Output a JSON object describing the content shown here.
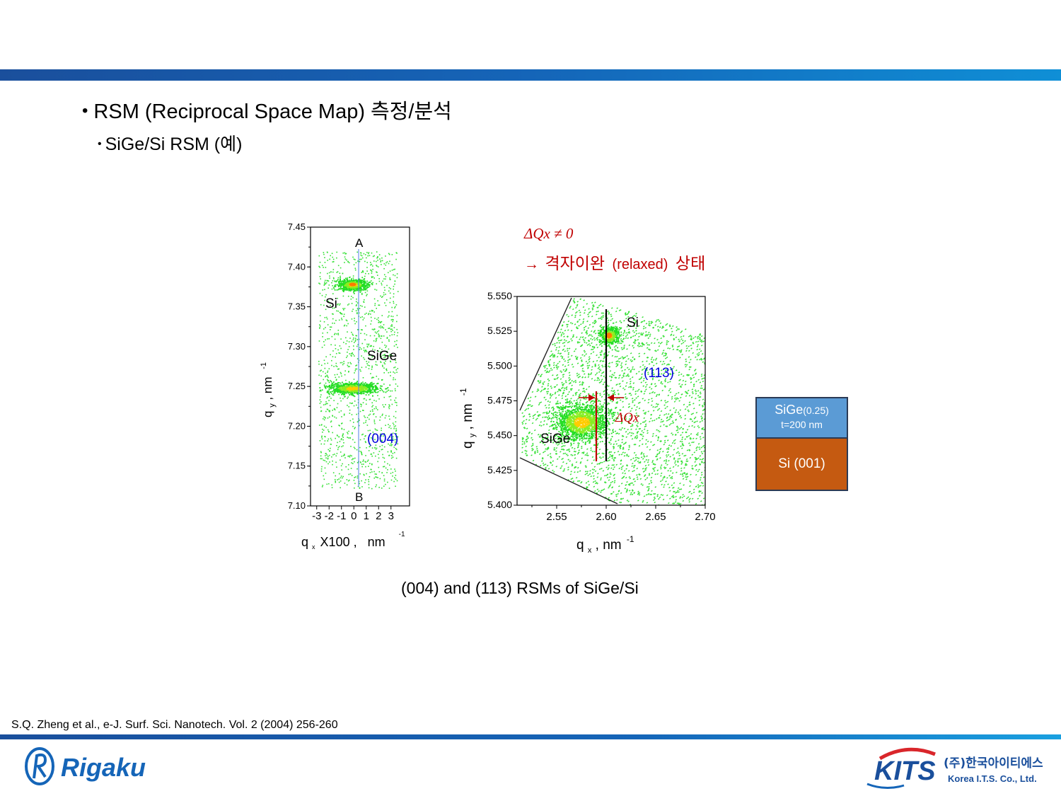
{
  "slide": {
    "bullet_main": "RSM (Reciprocal Space Map) 측정/분석",
    "bullet_sub": "SiGe/Si RSM (예)",
    "caption": "(004) and (113) RSMs of SiGe/Si",
    "reference": "S.Q. Zheng et al., e-J. Surf. Sci. Nanotech. Vol. 2 (2004) 256-260",
    "annotation_line1": "ΔQx ≠ 0",
    "annotation_line2_arrow": "→",
    "annotation_line2_korean1": "격자이완",
    "annotation_line2_paren": "(relaxed)",
    "annotation_line2_korean2": "상태"
  },
  "stack": {
    "top_layer": "SiGe",
    "top_layer_comp": "(0.25)",
    "top_layer_thickness": "t=200 nm",
    "bottom_layer": "Si (001)"
  },
  "logos": {
    "rigaku": "Rigaku",
    "kits": "KITS",
    "kits_korean": "(주)한국아이티에스",
    "kits_english": "Korea I.T.S. Co., Ltd."
  },
  "colors": {
    "accent_blue": "#1565b8",
    "scatter_green": "#22dd22",
    "peak_core": "#ff7a00",
    "annotation_red": "#c00000",
    "miller_blue": "#0000dd",
    "layer_sige": "#5b9bd5",
    "layer_si": "#c55a11"
  },
  "chart_data": [
    {
      "type": "scatter",
      "name_label": "(004)",
      "xlabel_parts": [
        "q",
        "x",
        "X100 ,",
        "nm",
        "-1"
      ],
      "ylabel_parts": [
        "q",
        "y",
        ", nm",
        "-1"
      ],
      "xlim": [
        -3.5,
        4.5
      ],
      "ylim": [
        7.1,
        7.45
      ],
      "x_ticks": [
        -3,
        -2,
        -1,
        0,
        1,
        2,
        3
      ],
      "y_ticks": [
        7.1,
        7.15,
        7.2,
        7.25,
        7.3,
        7.35,
        7.4,
        7.45
      ],
      "points": [
        {
          "label": "Si",
          "qx": -0.1,
          "qy": 7.378
        },
        {
          "label": "SiGe",
          "qx": -0.1,
          "qy": 7.248
        }
      ],
      "line_labels": [
        "A",
        "B"
      ]
    },
    {
      "type": "scatter",
      "name_label": "(113)",
      "xlabel_parts": [
        "q",
        "x",
        ", nm",
        "-1"
      ],
      "ylabel_parts": [
        "q",
        "y",
        ", nm",
        "-1"
      ],
      "xlim": [
        2.51,
        2.7
      ],
      "ylim": [
        5.4,
        5.55
      ],
      "x_ticks": [
        2.55,
        2.6,
        2.65,
        2.7
      ],
      "y_ticks": [
        5.4,
        5.425,
        5.45,
        5.475,
        5.5,
        5.525,
        5.55
      ],
      "points": [
        {
          "label": "Si",
          "qx": 2.603,
          "qy": 5.522
        },
        {
          "label": "SiGe",
          "qx": 2.575,
          "qy": 5.46
        }
      ],
      "delta_label": "ΔQx"
    }
  ]
}
